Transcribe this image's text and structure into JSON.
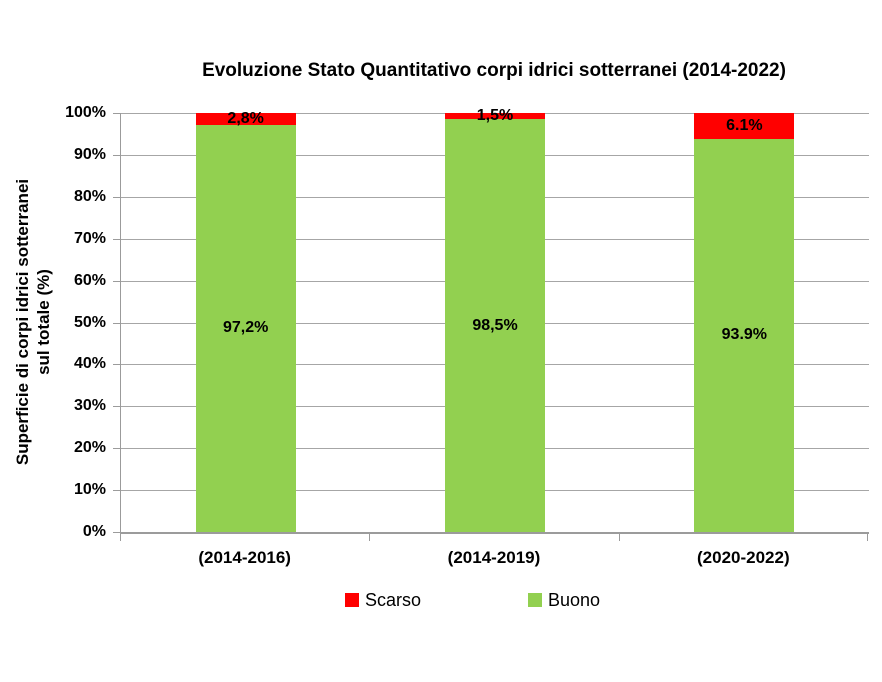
{
  "chart_data": {
    "type": "bar",
    "stacked": true,
    "title": "Evoluzione Stato Quantitativo corpi idrici sotterranei (2014-2022)",
    "ylabel": "Superficie di corpi idrici sotterranei sul totale (%)",
    "ylabel_lines": [
      "Superficie di corpi idrici sotterranei",
      "sul totale (%)"
    ],
    "categories": [
      "(2014-2016)",
      "(2014-2019)",
      "(2020-2022)"
    ],
    "series": [
      {
        "name": "Buono",
        "color": "#92d050",
        "values": [
          97.2,
          98.5,
          93.9
        ],
        "labels": [
          "97,2%",
          "98,5%",
          "93.9%"
        ]
      },
      {
        "name": "Scarso",
        "color": "#ff0000",
        "values": [
          2.8,
          1.5,
          6.1
        ],
        "labels": [
          "2,8%",
          "1,5%",
          "6.1%"
        ]
      }
    ],
    "legend": [
      {
        "label": "Scarso",
        "color": "#ff0000"
      },
      {
        "label": "Buono",
        "color": "#92d050"
      }
    ],
    "legend_position": "bottom",
    "ylim": [
      0,
      100
    ],
    "ytick_step": 10,
    "yticks": [
      "0%",
      "10%",
      "20%",
      "30%",
      "40%",
      "50%",
      "60%",
      "70%",
      "80%",
      "90%",
      "100%"
    ],
    "grid": true,
    "gridline_color": "#a6a6a6",
    "axis_color": "#9b9b9b",
    "text_color": "#000000",
    "background_color": "#ffffff"
  }
}
